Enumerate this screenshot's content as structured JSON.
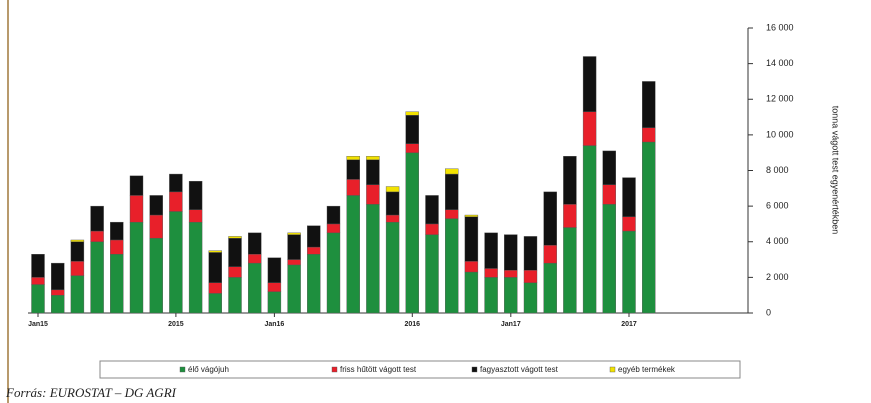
{
  "chart_data": {
    "type": "bar",
    "stacked": true,
    "ylabel": "tonna vágott test egyenértékben",
    "source": "Forrás: EUROSTAT – DG AGRI",
    "categories": [
      "Jan15",
      null,
      null,
      null,
      null,
      null,
      null,
      "2015",
      null,
      null,
      null,
      null,
      "Jan16",
      null,
      null,
      null,
      null,
      null,
      null,
      "2016",
      null,
      null,
      null,
      null,
      "Jan17",
      null,
      null,
      null,
      null,
      null,
      "2017",
      null
    ],
    "series": [
      {
        "name": "élő vágójuh",
        "color": "#1e8f3e",
        "values": [
          1600,
          1000,
          2100,
          4000,
          3300,
          5100,
          4200,
          5700,
          5100,
          1100,
          2000,
          2800,
          1200,
          2700,
          3300,
          4500,
          6600,
          6100,
          5100,
          9000,
          4400,
          5300,
          2300,
          2000,
          2000,
          1700,
          2800,
          4800,
          9400,
          6100,
          4600,
          9600
        ]
      },
      {
        "name": "friss hűtött vágott test",
        "color": "#e8202a",
        "values": [
          400,
          300,
          800,
          600,
          800,
          1500,
          1300,
          1100,
          700,
          600,
          600,
          500,
          500,
          300,
          400,
          500,
          900,
          1100,
          400,
          500,
          600,
          500,
          600,
          500,
          400,
          700,
          1000,
          1300,
          1900,
          1100,
          800,
          800
        ]
      },
      {
        "name": "fagyasztott vágott test",
        "color": "#111111",
        "values": [
          1300,
          1500,
          1100,
          1400,
          1000,
          1100,
          1100,
          1000,
          1600,
          1700,
          1600,
          1200,
          1400,
          1400,
          1200,
          1000,
          1100,
          1400,
          1300,
          1600,
          1600,
          2000,
          2500,
          2000,
          2000,
          1900,
          3000,
          2700,
          3100,
          1900,
          2200,
          2600
        ]
      },
      {
        "name": "egyéb termékek",
        "color": "#f2e200",
        "values": [
          0,
          0,
          100,
          0,
          0,
          0,
          0,
          0,
          0,
          100,
          100,
          0,
          0,
          100,
          0,
          0,
          200,
          200,
          300,
          200,
          0,
          300,
          100,
          0,
          0,
          0,
          0,
          0,
          0,
          0,
          0,
          0
        ]
      }
    ],
    "ylim": [
      0,
      16000
    ],
    "yticks": [
      0,
      {
        "value": 2000,
        "label": "2 000"
      },
      {
        "value": 4000,
        "label": "4 000"
      },
      {
        "value": 6000,
        "label": "6 000"
      },
      {
        "value": 8000,
        "label": "8 000"
      },
      {
        "value": 10000,
        "label": "10 000"
      },
      {
        "value": 12000,
        "label": "12 000"
      },
      {
        "value": 14000,
        "label": "14 000"
      },
      {
        "value": 16000,
        "label": "16 000"
      }
    ]
  }
}
